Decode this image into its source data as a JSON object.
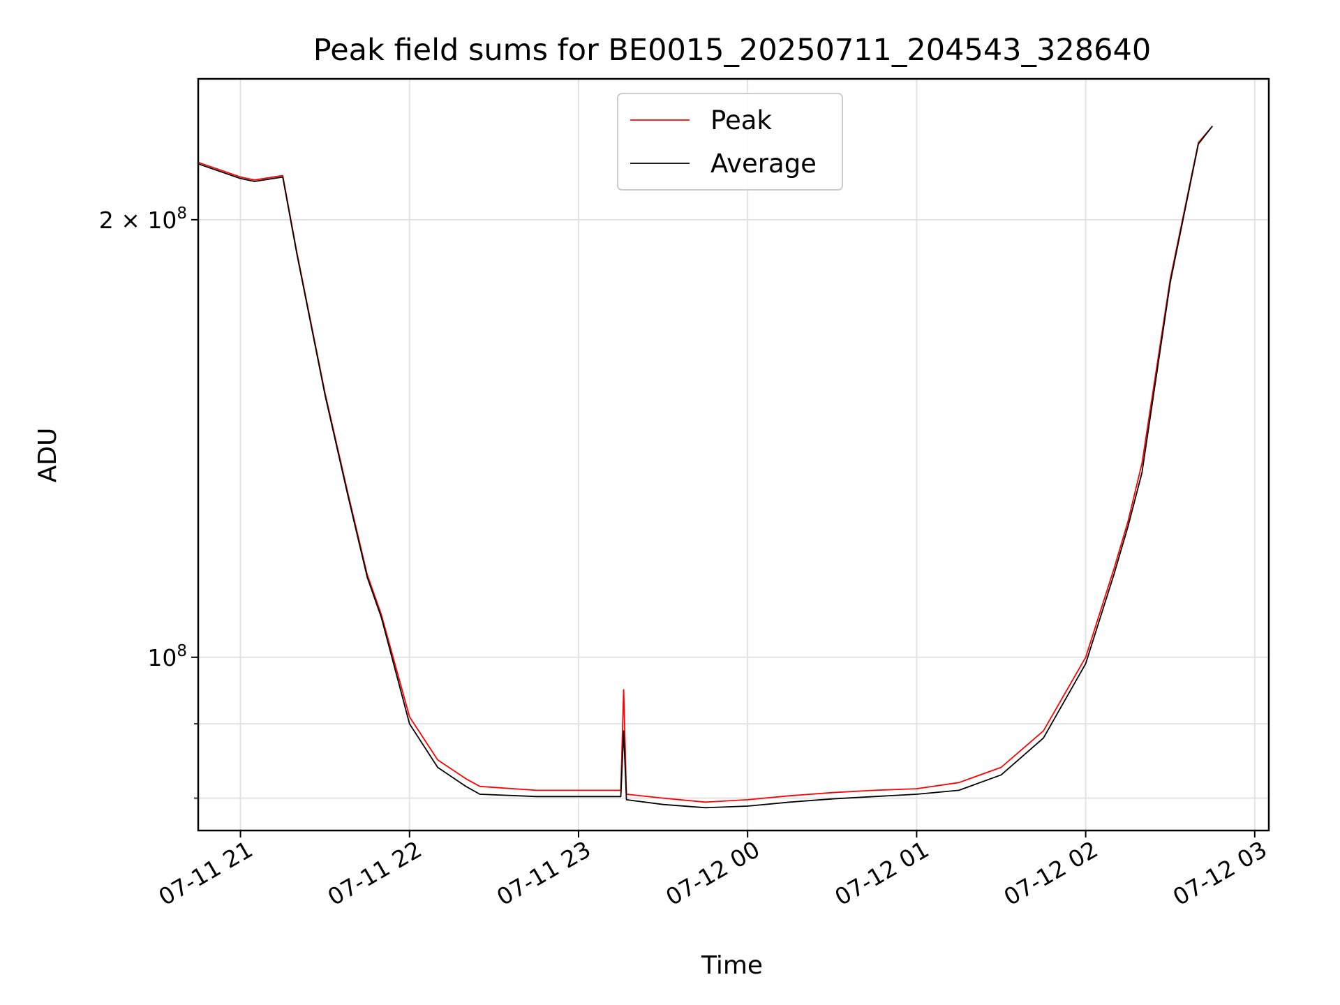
{
  "chart_data": {
    "type": "line",
    "title": "Peak field sums for BE0015_20250711_204543_328640",
    "xlabel": "Time",
    "ylabel": "ADU",
    "yscale": "log",
    "xlim": [
      "2025-07-11T20:45",
      "2025-07-12T03:05"
    ],
    "ylim": [
      76000000,
      250000000
    ],
    "x_ticks": [
      "07-11 21",
      "07-11 22",
      "07-11 23",
      "07-12 00",
      "07-12 01",
      "07-12 02",
      "07-12 03"
    ],
    "y_ticks_labeled": [
      {
        "value": 100000000,
        "base": "10",
        "exp": "8",
        "coef": ""
      },
      {
        "value": 200000000,
        "base": "10",
        "exp": "8",
        "coef": "2 × "
      }
    ],
    "y_ticks_minor": [
      90000000,
      80000000
    ],
    "grid": true,
    "legend_position": "upper center",
    "series": [
      {
        "name": "Peak",
        "color": "#ff0000",
        "points": [
          [
            "2025-07-11T20:45",
            219000000
          ],
          [
            "2025-07-11T21:00",
            214000000
          ],
          [
            "2025-07-11T21:05",
            213000000
          ],
          [
            "2025-07-11T21:15",
            214500000
          ],
          [
            "2025-07-11T21:20",
            190000000
          ],
          [
            "2025-07-11T21:30",
            152000000
          ],
          [
            "2025-07-11T21:38",
            130000000
          ],
          [
            "2025-07-11T21:45",
            114000000
          ],
          [
            "2025-07-11T21:50",
            107000000
          ],
          [
            "2025-07-11T22:00",
            91000000
          ],
          [
            "2025-07-11T22:10",
            85000000
          ],
          [
            "2025-07-11T22:20",
            82500000
          ],
          [
            "2025-07-11T22:25",
            81500000
          ],
          [
            "2025-07-11T22:45",
            81000000
          ],
          [
            "2025-07-11T23:15",
            81000000
          ],
          [
            "2025-07-11T23:16",
            95000000
          ],
          [
            "2025-07-11T23:17",
            80500000
          ],
          [
            "2025-07-11T23:30",
            80000000
          ],
          [
            "2025-07-11T23:45",
            79500000
          ],
          [
            "2025-07-12T00:00",
            79800000
          ],
          [
            "2025-07-12T00:15",
            80300000
          ],
          [
            "2025-07-12T00:30",
            80700000
          ],
          [
            "2025-07-12T00:45",
            81000000
          ],
          [
            "2025-07-12T01:00",
            81200000
          ],
          [
            "2025-07-12T01:15",
            82000000
          ],
          [
            "2025-07-12T01:30",
            84000000
          ],
          [
            "2025-07-12T01:45",
            89000000
          ],
          [
            "2025-07-12T02:00",
            100000000
          ],
          [
            "2025-07-12T02:10",
            115000000
          ],
          [
            "2025-07-12T02:15",
            124000000
          ],
          [
            "2025-07-12T02:20",
            136000000
          ],
          [
            "2025-07-12T02:30",
            182000000
          ],
          [
            "2025-07-12T02:40",
            226000000
          ],
          [
            "2025-07-12T02:45",
            232000000
          ]
        ]
      },
      {
        "name": "Average",
        "color": "#000000",
        "points": [
          [
            "2025-07-11T20:45",
            218500000
          ],
          [
            "2025-07-11T21:00",
            213500000
          ],
          [
            "2025-07-11T21:05",
            212500000
          ],
          [
            "2025-07-11T21:15",
            214000000
          ],
          [
            "2025-07-11T21:20",
            189500000
          ],
          [
            "2025-07-11T21:30",
            151500000
          ],
          [
            "2025-07-11T21:38",
            129500000
          ],
          [
            "2025-07-11T21:45",
            113500000
          ],
          [
            "2025-07-11T21:50",
            106500000
          ],
          [
            "2025-07-11T22:00",
            90000000
          ],
          [
            "2025-07-11T22:10",
            84000000
          ],
          [
            "2025-07-11T22:20",
            81500000
          ],
          [
            "2025-07-11T22:25",
            80500000
          ],
          [
            "2025-07-11T22:45",
            80200000
          ],
          [
            "2025-07-11T23:15",
            80200000
          ],
          [
            "2025-07-11T23:16",
            89000000
          ],
          [
            "2025-07-11T23:17",
            79800000
          ],
          [
            "2025-07-11T23:30",
            79200000
          ],
          [
            "2025-07-11T23:45",
            78800000
          ],
          [
            "2025-07-12T00:00",
            79000000
          ],
          [
            "2025-07-12T00:15",
            79500000
          ],
          [
            "2025-07-12T00:30",
            79900000
          ],
          [
            "2025-07-12T00:45",
            80200000
          ],
          [
            "2025-07-12T01:00",
            80500000
          ],
          [
            "2025-07-12T01:15",
            81000000
          ],
          [
            "2025-07-12T01:30",
            83000000
          ],
          [
            "2025-07-12T01:45",
            88000000
          ],
          [
            "2025-07-12T02:00",
            99000000
          ],
          [
            "2025-07-12T02:10",
            114000000
          ],
          [
            "2025-07-12T02:15",
            123000000
          ],
          [
            "2025-07-12T02:20",
            134000000
          ],
          [
            "2025-07-12T02:30",
            181000000
          ],
          [
            "2025-07-12T02:40",
            225500000
          ],
          [
            "2025-07-12T02:45",
            232000000
          ]
        ]
      }
    ]
  }
}
